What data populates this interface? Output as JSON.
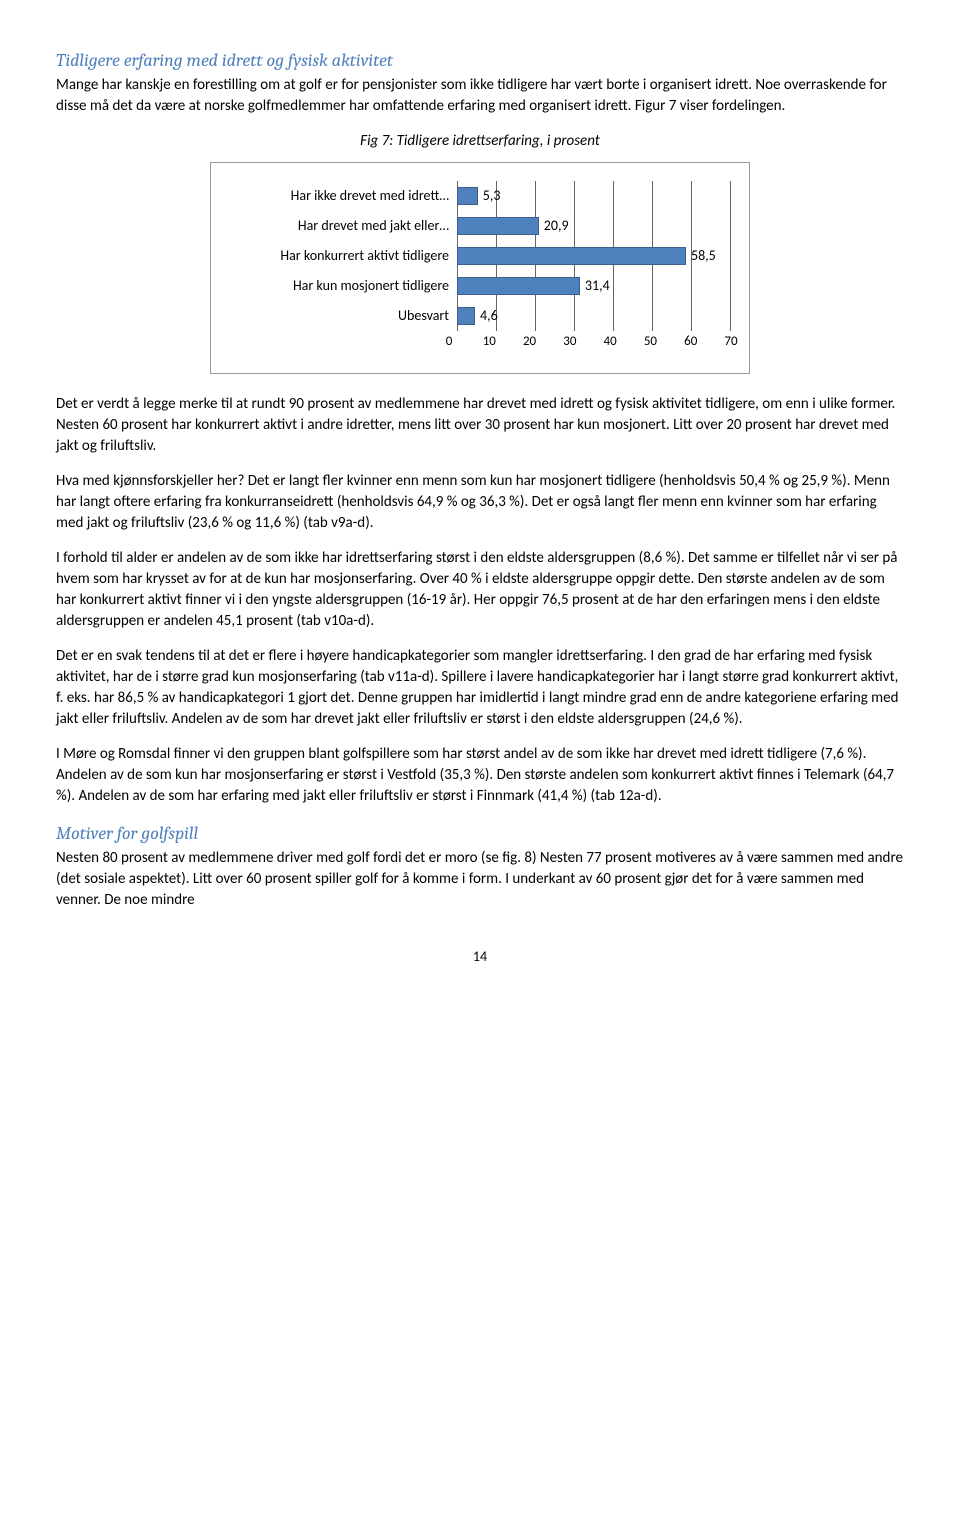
{
  "section1": {
    "heading": "Tidligere erfaring med idrett og fysisk aktivitet",
    "para1": "Mange har kanskje en forestilling om at golf er for pensjonister som ikke tidligere har vært borte i organisert idrett. Noe overraskende for disse må det da være at norske golfmedlemmer har omfattende erfaring med organisert idrett. Figur 7 viser fordelingen.",
    "chart_caption": "Fig 7: Tidligere idrettserfaring, i prosent",
    "chart": {
      "type": "bar-horizontal",
      "xlim": [
        0,
        70
      ],
      "xtick_step": 10,
      "ticks": [
        0,
        10,
        20,
        30,
        40,
        50,
        60,
        70
      ],
      "bar_color": "#4f81bd",
      "bar_border": "#3a5f8a",
      "grid_color": "#666666",
      "background_color": "#ffffff",
      "label_fontsize": 14,
      "items": [
        {
          "label": "Har ikke drevet med idrett…",
          "value": 5.3,
          "display": "5,3"
        },
        {
          "label": "Har drevet med jakt eller…",
          "value": 20.9,
          "display": "20,9"
        },
        {
          "label": "Har konkurrert aktivt tidligere",
          "value": 58.5,
          "display": "58,5"
        },
        {
          "label": "Har kun mosjonert tidligere",
          "value": 31.4,
          "display": "31,4"
        },
        {
          "label": "Ubesvart",
          "value": 4.6,
          "display": "4,6"
        }
      ]
    },
    "para2": "Det er verdt å legge merke til at rundt 90 prosent av medlemmene har drevet med idrett og fysisk aktivitet tidligere, om enn i ulike former. Nesten 60 prosent har konkurrert aktivt i andre idretter, mens litt over 30 prosent har kun mosjonert. Litt over 20 prosent har drevet med jakt og friluftsliv.",
    "para3": "Hva med kjønnsforskjeller her? Det er langt fler kvinner enn menn som kun har mosjonert tidligere (henholdsvis 50,4 % og 25,9 %). Menn har langt oftere erfaring fra konkurranseidrett (henholdsvis 64,9 % og 36,3 %). Det er også langt fler menn enn kvinner som har erfaring med jakt og friluftsliv (23,6 % og 11,6 %) (tab v9a-d).",
    "para4": "I forhold til alder er andelen av de som ikke har idrettserfaring størst i den eldste aldersgruppen (8,6 %). Det samme er tilfellet når vi ser på hvem som har krysset av for at de kun har mosjonserfaring. Over 40 % i eldste aldersgruppe oppgir dette. Den største andelen av de som har konkurrert aktivt finner vi i den yngste aldersgruppen (16-19 år). Her oppgir 76,5 prosent at de har den erfaringen mens i den eldste aldersgruppen er andelen 45,1 prosent (tab v10a-d).",
    "para5": "Det er en svak tendens til at det er flere i høyere handicapkategorier som mangler idrettserfaring. I den grad de har erfaring med fysisk aktivitet, har de i større grad kun mosjonserfaring (tab v11a-d). Spillere i lavere handicapkategorier har i langt større grad konkurrert aktivt, f. eks. har 86,5 % av handicapkategori 1 gjort det. Denne gruppen har imidlertid i langt mindre grad enn de andre kategoriene erfaring med jakt eller friluftsliv. Andelen av de som har drevet jakt eller friluftsliv er størst i den eldste aldersgruppen (24,6 %).",
    "para6": "I Møre og Romsdal finner vi den gruppen blant golfspillere som har størst andel av de som ikke har drevet med idrett tidligere (7,6 %). Andelen av de som kun har mosjonserfaring er størst i Vestfold (35,3 %). Den største andelen som konkurrert aktivt finnes i Telemark (64,7 %). Andelen av de som har erfaring med jakt eller friluftsliv er størst i Finnmark (41,4 %) (tab 12a-d)."
  },
  "section2": {
    "heading": "Motiver for golfspill",
    "para1": "Nesten 80 prosent av medlemmene driver med golf fordi det er moro (se fig. 8) Nesten 77 prosent motiveres av å være sammen med andre (det sosiale aspektet).  Litt over 60 prosent spiller golf for å komme i form. I underkant av 60 prosent gjør det for å være sammen med venner. De noe mindre"
  },
  "page_number": "14"
}
